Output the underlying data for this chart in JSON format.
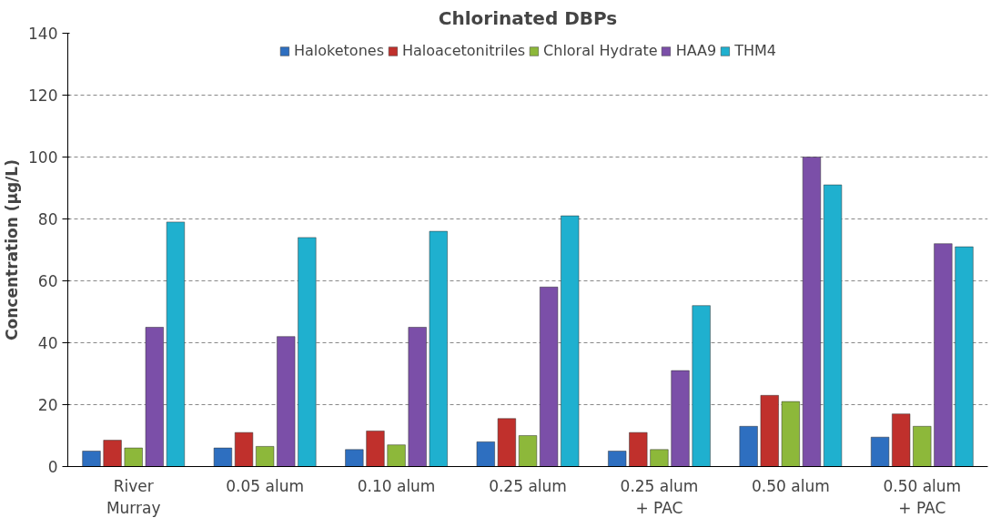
{
  "chart_data": {
    "type": "bar",
    "title": "Chlorinated DBPs",
    "ylabel": "Concentration (µg/L)",
    "categories": [
      "River\nMurray",
      "0.05 alum",
      "0.10 alum",
      "0.25 alum",
      "0.25 alum\n+ PAC",
      "0.50 alum",
      "0.50 alum\n+ PAC"
    ],
    "series": [
      {
        "name": "Haloketones",
        "color": "#2e6fc0",
        "values": [
          5,
          6,
          5.5,
          8,
          5,
          13,
          9.5
        ]
      },
      {
        "name": "Haloacetonitriles",
        "color": "#c0302c",
        "values": [
          8.5,
          11,
          11.5,
          15.5,
          11,
          23,
          17
        ]
      },
      {
        "name": "Chloral Hydrate",
        "color": "#8db83a",
        "values": [
          6,
          6.5,
          7,
          10,
          5.5,
          21,
          13
        ]
      },
      {
        "name": "HAA9",
        "color": "#7b4fa8",
        "values": [
          45,
          42,
          45,
          58,
          31,
          100,
          72
        ]
      },
      {
        "name": "THM4",
        "color": "#1fb0cf",
        "values": [
          79,
          74,
          76,
          81,
          52,
          91,
          71
        ]
      }
    ],
    "ylim": [
      0,
      140
    ],
    "yticks": [
      0,
      20,
      40,
      60,
      80,
      100,
      120,
      140
    ],
    "grid": "y",
    "legend": "top"
  }
}
